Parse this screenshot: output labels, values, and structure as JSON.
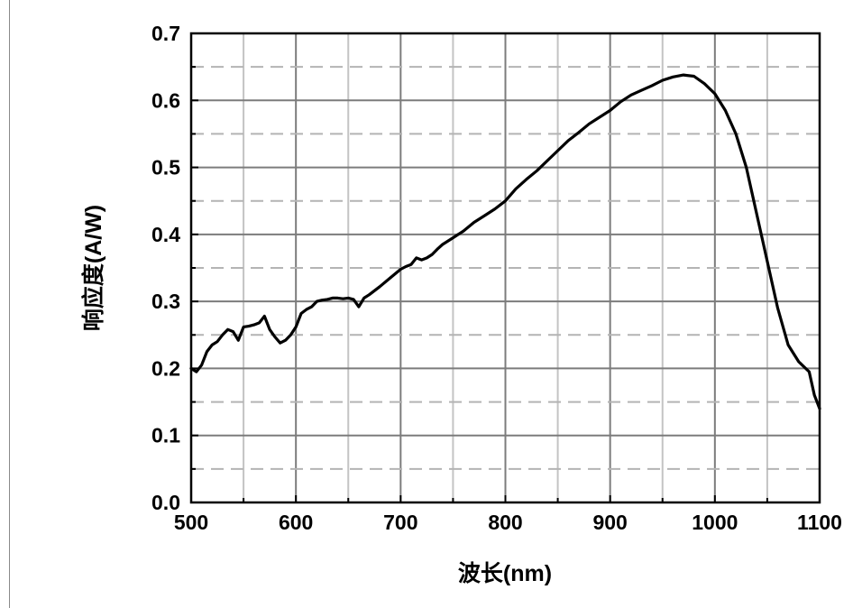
{
  "chart_data": {
    "type": "line",
    "title": "",
    "xlabel": "波长(nm)",
    "ylabel": "响应度(A/W)",
    "xlim": [
      500,
      1100
    ],
    "ylim": [
      0.0,
      0.7
    ],
    "x_ticks": [
      500,
      600,
      700,
      800,
      900,
      1000,
      1100
    ],
    "x_tick_labels": [
      "500",
      "600",
      "700",
      "800",
      "900",
      "1000",
      "1100"
    ],
    "y_ticks": [
      0.0,
      0.1,
      0.2,
      0.3,
      0.4,
      0.5,
      0.6,
      0.7
    ],
    "y_tick_labels": [
      "0.0",
      "0.1",
      "0.2",
      "0.3",
      "0.4",
      "0.5",
      "0.6",
      "0.7"
    ],
    "grid": true,
    "grid_minor_style": "dashed",
    "line_color": "#000000",
    "series": [
      {
        "x": [
          500,
          505,
          510,
          515,
          520,
          525,
          530,
          535,
          540,
          545,
          550,
          555,
          560,
          565,
          570,
          575,
          580,
          585,
          590,
          595,
          600,
          605,
          610,
          615,
          620,
          625,
          630,
          635,
          640,
          645,
          650,
          655,
          660,
          665,
          670,
          680,
          690,
          700,
          705,
          710,
          715,
          720,
          725,
          730,
          735,
          740,
          750,
          760,
          770,
          780,
          790,
          800,
          810,
          820,
          830,
          840,
          850,
          860,
          870,
          880,
          890,
          900,
          910,
          920,
          930,
          940,
          950,
          960,
          970,
          980,
          990,
          1000,
          1010,
          1020,
          1030,
          1040,
          1050,
          1060,
          1070,
          1080,
          1090,
          1095,
          1100
        ],
        "y": [
          0.2,
          0.195,
          0.205,
          0.225,
          0.235,
          0.24,
          0.25,
          0.258,
          0.255,
          0.242,
          0.262,
          0.263,
          0.265,
          0.268,
          0.278,
          0.258,
          0.247,
          0.238,
          0.242,
          0.25,
          0.262,
          0.282,
          0.288,
          0.292,
          0.3,
          0.302,
          0.303,
          0.305,
          0.305,
          0.304,
          0.305,
          0.303,
          0.292,
          0.305,
          0.31,
          0.322,
          0.335,
          0.348,
          0.352,
          0.355,
          0.365,
          0.362,
          0.365,
          0.37,
          0.378,
          0.385,
          0.395,
          0.405,
          0.418,
          0.428,
          0.438,
          0.45,
          0.468,
          0.482,
          0.495,
          0.51,
          0.525,
          0.54,
          0.552,
          0.565,
          0.575,
          0.585,
          0.598,
          0.608,
          0.615,
          0.622,
          0.63,
          0.635,
          0.638,
          0.636,
          0.625,
          0.61,
          0.585,
          0.55,
          0.5,
          0.43,
          0.36,
          0.29,
          0.235,
          0.21,
          0.195,
          0.16,
          0.14
        ]
      }
    ]
  }
}
